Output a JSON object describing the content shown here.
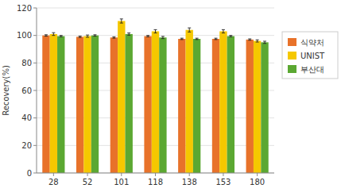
{
  "chart_data": {
    "type": "bar",
    "categories": [
      "28",
      "52",
      "101",
      "118",
      "138",
      "153",
      "180"
    ],
    "series": [
      {
        "name": "식약처",
        "color": "#E8722A",
        "values": [
          100.0,
          99.0,
          98.5,
          99.5,
          97.5,
          97.5,
          97.0
        ],
        "errors": [
          0.5,
          0.5,
          0.5,
          0.5,
          0.5,
          0.5,
          0.5
        ]
      },
      {
        "name": "UNIST",
        "color": "#F5C800",
        "values": [
          101.0,
          99.5,
          110.5,
          103.0,
          104.0,
          103.0,
          96.0
        ],
        "errors": [
          1.0,
          0.8,
          1.5,
          1.2,
          1.5,
          1.2,
          0.8
        ]
      },
      {
        "name": "부산대",
        "color": "#5BA832",
        "values": [
          99.5,
          100.0,
          101.0,
          98.5,
          97.5,
          99.5,
          95.0
        ],
        "errors": [
          0.5,
          0.5,
          0.8,
          0.8,
          0.5,
          0.5,
          0.8
        ]
      }
    ],
    "ylabel": "Recovery(%)",
    "ylim": [
      0,
      120
    ],
    "yticks": [
      0,
      20,
      40,
      60,
      80,
      100,
      120
    ],
    "grid": true,
    "legend": "right"
  }
}
